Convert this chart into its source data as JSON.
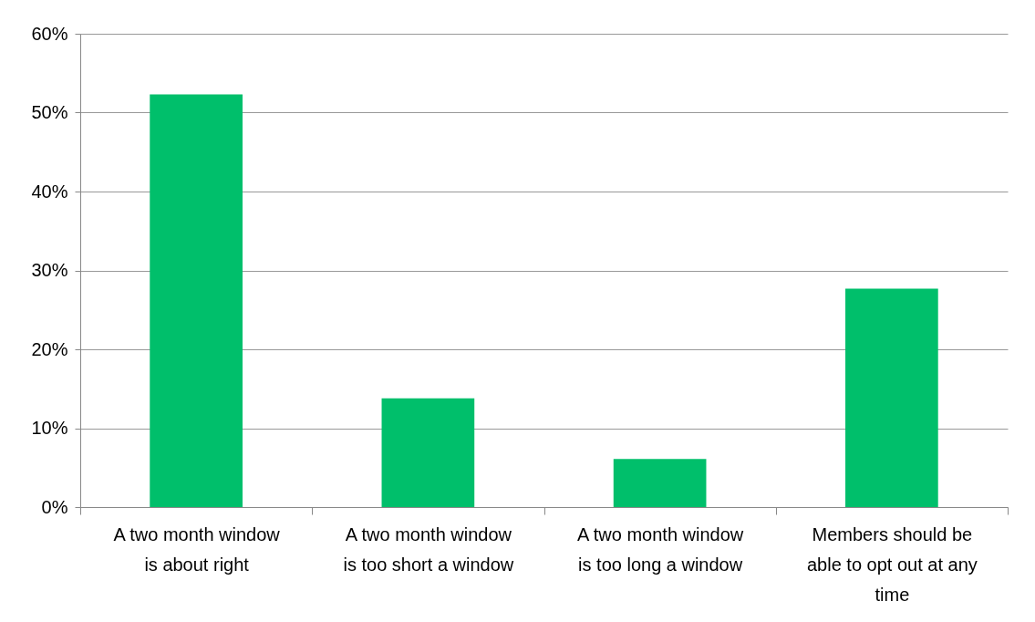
{
  "chart_data": {
    "type": "bar",
    "categories": [
      "A two month window is about right",
      "A two month window is too short a window",
      "A two month window is too long a window",
      "Members should be able to opt out at any time"
    ],
    "values": [
      52.3,
      13.8,
      6.1,
      27.7
    ],
    "color": "#00bf6b",
    "ylim": [
      0,
      60
    ],
    "yticks": [
      {
        "value": 0,
        "label": "0%"
      },
      {
        "value": 10,
        "label": "10%"
      },
      {
        "value": 20,
        "label": "20%"
      },
      {
        "value": 30,
        "label": "30%"
      },
      {
        "value": 40,
        "label": "40%"
      },
      {
        "value": 50,
        "label": "50%"
      },
      {
        "value": 60,
        "label": "60%"
      }
    ],
    "grid": "y"
  }
}
